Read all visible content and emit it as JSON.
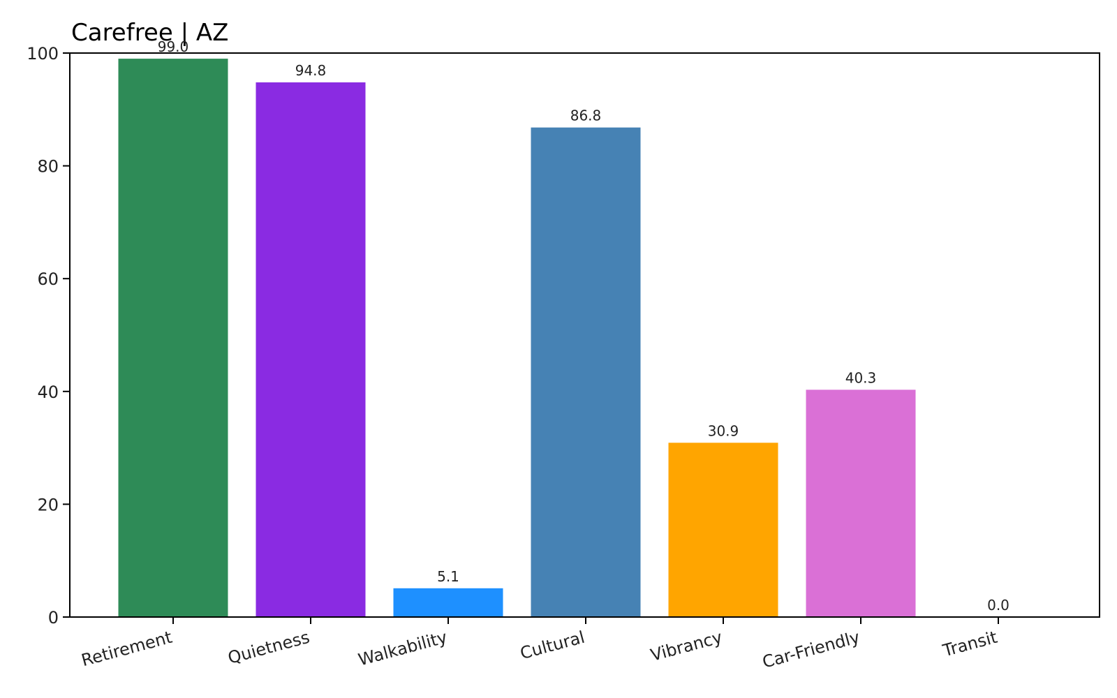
{
  "chart_data": {
    "type": "bar",
    "title": "Carefree | AZ",
    "xlabel": "",
    "ylabel": "",
    "categories": [
      "Retirement",
      "Quietness",
      "Walkability",
      "Cultural",
      "Vibrancy",
      "Car-Friendly",
      "Transit"
    ],
    "values": [
      99.0,
      94.8,
      5.1,
      86.8,
      30.9,
      40.3,
      0.0
    ],
    "value_labels": [
      "99.0",
      "94.8",
      "5.1",
      "86.8",
      "30.9",
      "40.3",
      "0.0"
    ],
    "colors": [
      "#2e8b57",
      "#8a2be2",
      "#1e90ff",
      "#4682b4",
      "#ffa500",
      "#da70d6",
      "#708090"
    ],
    "ylim": [
      0,
      100
    ],
    "yticks": [
      0,
      20,
      40,
      60,
      80,
      100
    ],
    "ytick_labels": [
      "0",
      "20",
      "40",
      "60",
      "80",
      "100"
    ],
    "grid": false,
    "legend": "none"
  }
}
